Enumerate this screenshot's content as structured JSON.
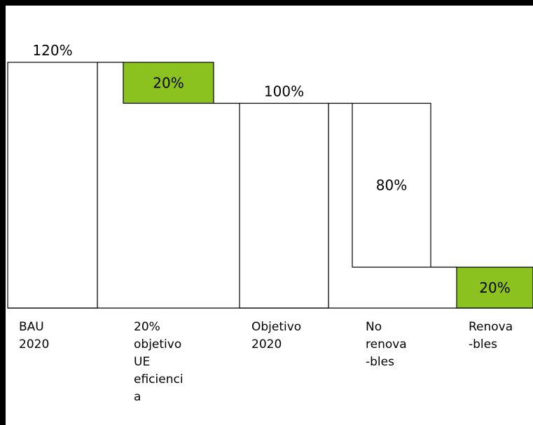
{
  "chart_data": {
    "type": "bar",
    "subtype": "waterfall",
    "categories": [
      "BAU\n2020",
      "20%\nobjetivo\nUE\neficienci\na",
      "Objetivo\n2020",
      "No\nrenova\n-bles",
      "Renova\n-bles"
    ],
    "bars": [
      {
        "category": "BAU\n2020",
        "bottom": 0,
        "top": 120,
        "label": "120%",
        "color": "#ffffff"
      },
      {
        "category": "20%\nobjetivo\nUE\neficienci\na",
        "bottom": 100,
        "top": 120,
        "label": "20%",
        "color": "#8cc21f"
      },
      {
        "category": "Objetivo\n2020",
        "bottom": 0,
        "top": 100,
        "label": "100%",
        "color": "#ffffff"
      },
      {
        "category": "No\nrenova\n-bles",
        "bottom": 20,
        "top": 100,
        "label": "80%",
        "color": "#ffffff"
      },
      {
        "category": "Renova\n-bles",
        "bottom": 0,
        "top": 20,
        "label": "20%",
        "color": "#8cc21f"
      }
    ],
    "ylim": [
      0,
      120
    ],
    "grid": false,
    "colors": {
      "highlight": "#8cc21f",
      "outline": "#000000",
      "plain": "#ffffff"
    }
  }
}
